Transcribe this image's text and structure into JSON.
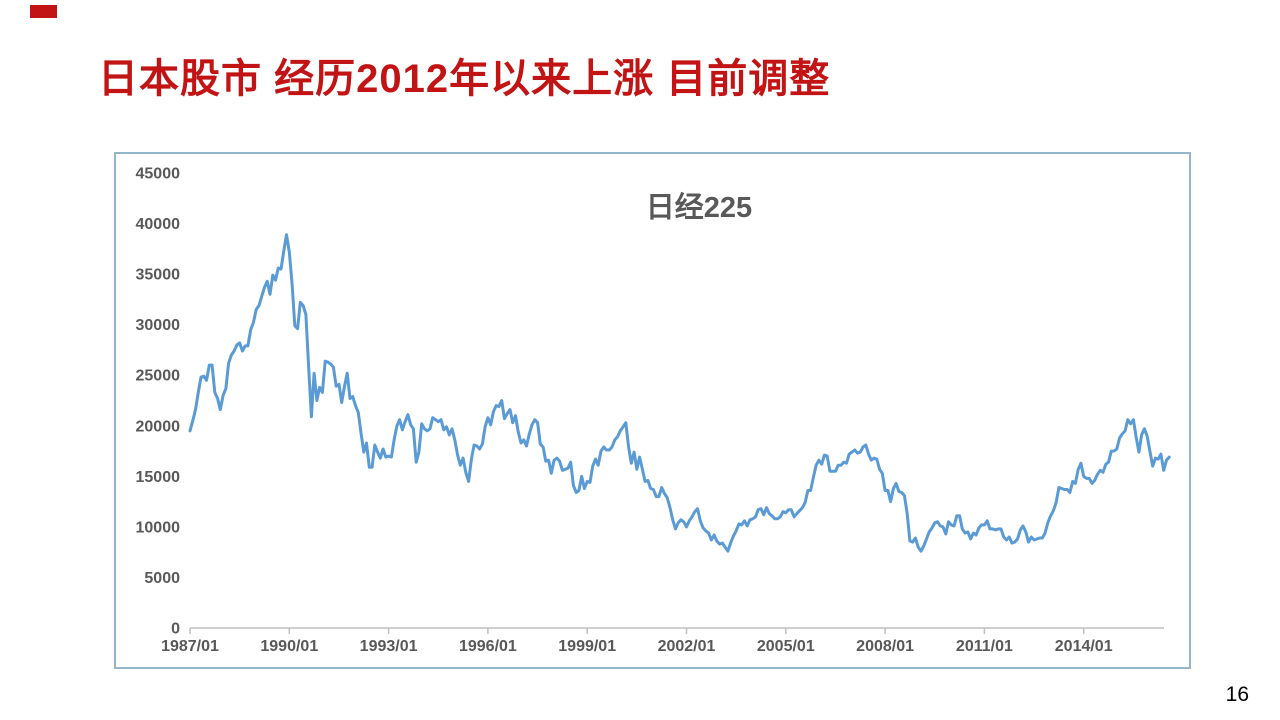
{
  "slide": {
    "title": "日本股市 经历2012年以来上涨 目前调整",
    "title_color": "#c21414",
    "accent_color": "#c21414",
    "page_number": "16"
  },
  "chart_data": {
    "type": "line",
    "title": "日经225",
    "series": [
      {
        "name": "日经225"
      }
    ],
    "x_start": "1987/01",
    "x_end": "2016/08",
    "x_step_months": 1,
    "x_tick_labels": [
      "1987/01",
      "1990/01",
      "1993/01",
      "1996/01",
      "1999/01",
      "2002/01",
      "2005/01",
      "2008/01",
      "2011/01",
      "2014/01"
    ],
    "y_ticks": [
      45000,
      40000,
      35000,
      30000,
      25000,
      20000,
      15000,
      10000,
      5000,
      0
    ],
    "ylim": [
      0,
      45000
    ],
    "grid": "off",
    "legend": "none",
    "line_color": "#5b9bd5",
    "axis_color": "#bfbfbf",
    "label_color": "#595959",
    "values": [
      19500,
      20500,
      21600,
      23300,
      24800,
      24900,
      24500,
      26000,
      26000,
      23300,
      22700,
      21600,
      23000,
      23700,
      26200,
      27000,
      27400,
      28000,
      28200,
      27400,
      27900,
      27900,
      29500,
      30200,
      31500,
      31900,
      32800,
      33700,
      34300,
      33000,
      34900,
      34400,
      35600,
      35500,
      37300,
      38900,
      37200,
      34000,
      29900,
      29600,
      32200,
      31900,
      31000,
      25900,
      20900,
      25200,
      22500,
      23800,
      23300,
      26400,
      26300,
      26100,
      25800,
      23900,
      24100,
      22300,
      23900,
      25200,
      22700,
      22900,
      22000,
      21300,
      19300,
      17400,
      18300,
      15900,
      15900,
      18100,
      17400,
      16800,
      17700,
      16900,
      17000,
      16900,
      18600,
      20000,
      20600,
      19600,
      20400,
      21100,
      20100,
      19700,
      16400,
      17400,
      20200,
      19700,
      19500,
      19700,
      20800,
      20600,
      20400,
      20600,
      19600,
      19900,
      19100,
      19700,
      18600,
      17100,
      16100,
      16800,
      15400,
      14500,
      16700,
      18100,
      18000,
      17700,
      18200,
      19900,
      20800,
      20100,
      21400,
      22000,
      21900,
      22500,
      20700,
      21200,
      21600,
      20300,
      21000,
      19400,
      18300,
      18600,
      18000,
      19200,
      20100,
      20600,
      20300,
      18200,
      17900,
      16500,
      16600,
      15300,
      16600,
      16800,
      16500,
      15600,
      15700,
      15800,
      16400,
      14100,
      13400,
      13600,
      15000,
      13800,
      14500,
      14400,
      16000,
      16700,
      16100,
      17500,
      17900,
      17600,
      17600,
      17900,
      18600,
      18900,
      19500,
      19900,
      20300,
      17900,
      16300,
      17400,
      15700,
      16900,
      15700,
      14500,
      14600,
      13800,
      13700,
      13000,
      13000,
      13900,
      13300,
      12900,
      11900,
      10700,
      9800,
      10400,
      10700,
      10500,
      10000,
      10600,
      11000,
      11500,
      11800,
      10600,
      9900,
      9600,
      9400,
      8700,
      9200,
      8600,
      8300,
      8400,
      8000,
      7600,
      8400,
      9100,
      9600,
      10300,
      10200,
      10600,
      10100,
      10700,
      10800,
      11000,
      11700,
      11800,
      11200,
      11900,
      11300,
      11100,
      10800,
      10800,
      11000,
      11500,
      11400,
      11700,
      11700,
      11000,
      11300,
      11600,
      11900,
      12400,
      13600,
      13600,
      14900,
      16100,
      16600,
      16200,
      17100,
      17000,
      15500,
      15500,
      15500,
      16100,
      16100,
      16400,
      16300,
      17200,
      17400,
      17600,
      17300,
      17400,
      17900,
      18100,
      17200,
      16600,
      16800,
      16700,
      15700,
      15300,
      13600,
      13600,
      12500,
      13800,
      14300,
      13500,
      13400,
      13100,
      11300,
      8600,
      8500,
      8900,
      8000,
      7600,
      8100,
      8800,
      9500,
      9900,
      10400,
      10500,
      10100,
      10000,
      9300,
      10500,
      10200,
      10100,
      11100,
      11100,
      9800,
      9400,
      9500,
      8800,
      9400,
      9200,
      9900,
      10200,
      10200,
      10600,
      9800,
      9800,
      9700,
      9800,
      9800,
      9000,
      8700,
      9000,
      8400,
      8500,
      8800,
      9700,
      10100,
      9500,
      8500,
      9000,
      8700,
      8800,
      8900,
      8900,
      9400,
      10400,
      11100,
      11600,
      12400,
      13900,
      13800,
      13700,
      13700,
      13400,
      14500,
      14300,
      15700,
      16300,
      15000,
      14800,
      14800,
      14300,
      14600,
      15200,
      15600,
      15400,
      16200,
      16400,
      17500,
      17500,
      17700,
      18800,
      19200,
      19500,
      20600,
      20200,
      20600,
      18900,
      17400,
      19100,
      19700,
      19000,
      17500,
      16000,
      16800,
      16700,
      17200,
      15600,
      16600,
      16900
    ]
  }
}
